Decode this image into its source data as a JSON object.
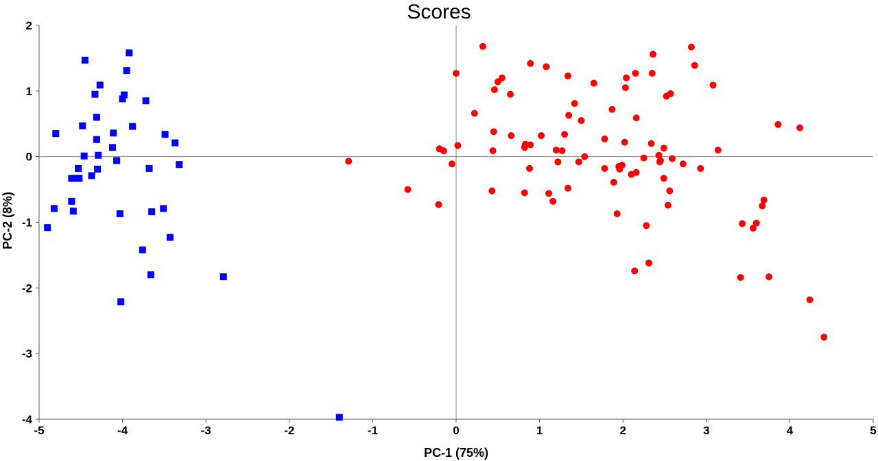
{
  "chart_data": {
    "type": "scatter",
    "title": "Scores",
    "xlabel": "PC-1 (75%)",
    "ylabel": "PC-2 (8%)",
    "xlim": [
      -5,
      5
    ],
    "ylim": [
      -4,
      2
    ],
    "xticks": [
      "-5",
      "-4",
      "-3",
      "-2",
      "-1",
      "0",
      "1",
      "2",
      "3",
      "4",
      "5"
    ],
    "yticks": [
      "2",
      "1",
      "0",
      "-1",
      "-2",
      "-3",
      "-4"
    ],
    "grid": false,
    "zero_lines": true,
    "legend": "none",
    "series": [
      {
        "marker": "square",
        "color": "#0000ff",
        "points": [
          [
            -4.45,
            1.47
          ],
          [
            -3.92,
            1.58
          ],
          [
            -3.95,
            1.31
          ],
          [
            -4.27,
            1.09
          ],
          [
            -4.33,
            0.95
          ],
          [
            -3.98,
            0.94
          ],
          [
            -4.0,
            0.88
          ],
          [
            -3.72,
            0.85
          ],
          [
            -4.31,
            0.6
          ],
          [
            -4.48,
            0.47
          ],
          [
            -3.88,
            0.46
          ],
          [
            -4.8,
            0.35
          ],
          [
            -4.11,
            0.36
          ],
          [
            -3.49,
            0.34
          ],
          [
            -4.31,
            0.26
          ],
          [
            -3.37,
            0.21
          ],
          [
            -4.12,
            0.14
          ],
          [
            -4.46,
            0.01
          ],
          [
            -4.29,
            0.02
          ],
          [
            -4.07,
            -0.06
          ],
          [
            -3.32,
            -0.12
          ],
          [
            -4.53,
            -0.18
          ],
          [
            -4.3,
            -0.19
          ],
          [
            -3.68,
            -0.18
          ],
          [
            -4.37,
            -0.29
          ],
          [
            -4.61,
            -0.33
          ],
          [
            -4.55,
            -0.33
          ],
          [
            -4.52,
            -0.33
          ],
          [
            -4.61,
            -0.68
          ],
          [
            -4.82,
            -0.79
          ],
          [
            -3.51,
            -0.79
          ],
          [
            -4.59,
            -0.83
          ],
          [
            -3.65,
            -0.84
          ],
          [
            -4.03,
            -0.87
          ],
          [
            -4.9,
            -1.08
          ],
          [
            -3.43,
            -1.23
          ],
          [
            -3.76,
            -1.42
          ],
          [
            -3.66,
            -1.8
          ],
          [
            -2.79,
            -1.83
          ],
          [
            -4.02,
            -2.21
          ],
          [
            -1.4,
            -3.97
          ]
        ]
      },
      {
        "marker": "circle",
        "color": "#ff0000",
        "points": [
          [
            0.32,
            1.68
          ],
          [
            2.82,
            1.67
          ],
          [
            2.36,
            1.56
          ],
          [
            0.89,
            1.42
          ],
          [
            2.86,
            1.39
          ],
          [
            1.08,
            1.37
          ],
          [
            0.0,
            1.27
          ],
          [
            2.15,
            1.27
          ],
          [
            2.35,
            1.27
          ],
          [
            1.34,
            1.23
          ],
          [
            0.55,
            1.2
          ],
          [
            2.04,
            1.2
          ],
          [
            0.5,
            1.14
          ],
          [
            1.65,
            1.12
          ],
          [
            3.08,
            1.09
          ],
          [
            2.03,
            1.05
          ],
          [
            0.46,
            1.02
          ],
          [
            2.57,
            0.96
          ],
          [
            0.65,
            0.95
          ],
          [
            2.52,
            0.92
          ],
          [
            1.42,
            0.81
          ],
          [
            1.87,
            0.72
          ],
          [
            0.22,
            0.66
          ],
          [
            1.35,
            0.63
          ],
          [
            2.16,
            0.59
          ],
          [
            1.5,
            0.55
          ],
          [
            3.86,
            0.49
          ],
          [
            4.12,
            0.44
          ],
          [
            0.45,
            0.38
          ],
          [
            1.3,
            0.34
          ],
          [
            0.66,
            0.32
          ],
          [
            1.02,
            0.32
          ],
          [
            1.78,
            0.27
          ],
          [
            2.02,
            0.22
          ],
          [
            2.34,
            0.2
          ],
          [
            0.83,
            0.19
          ],
          [
            0.89,
            0.18
          ],
          [
            0.02,
            0.17
          ],
          [
            0.82,
            0.14
          ],
          [
            2.49,
            0.13
          ],
          [
            -0.2,
            0.12
          ],
          [
            1.2,
            0.1
          ],
          [
            3.14,
            0.1
          ],
          [
            -0.15,
            0.09
          ],
          [
            0.44,
            0.09
          ],
          [
            1.27,
            0.09
          ],
          [
            2.43,
            0.02
          ],
          [
            1.54,
            0.0
          ],
          [
            2.25,
            -0.02
          ],
          [
            2.59,
            -0.03
          ],
          [
            2.45,
            -0.06
          ],
          [
            1.22,
            -0.08
          ],
          [
            2.44,
            -0.08
          ],
          [
            1.47,
            -0.08
          ],
          [
            -1.29,
            -0.07
          ],
          [
            -0.05,
            -0.11
          ],
          [
            2.72,
            -0.11
          ],
          [
            1.99,
            -0.13
          ],
          [
            1.95,
            -0.15
          ],
          [
            1.78,
            -0.18
          ],
          [
            0.88,
            -0.18
          ],
          [
            2.93,
            -0.18
          ],
          [
            1.96,
            -0.19
          ],
          [
            2.16,
            -0.24
          ],
          [
            2.1,
            -0.27
          ],
          [
            2.49,
            -0.33
          ],
          [
            1.89,
            -0.39
          ],
          [
            1.34,
            -0.48
          ],
          [
            -0.58,
            -0.5
          ],
          [
            0.43,
            -0.52
          ],
          [
            2.56,
            -0.52
          ],
          [
            0.82,
            -0.55
          ],
          [
            1.11,
            -0.56
          ],
          [
            3.69,
            -0.66
          ],
          [
            1.16,
            -0.68
          ],
          [
            -0.21,
            -0.73
          ],
          [
            2.54,
            -0.74
          ],
          [
            3.67,
            -0.75
          ],
          [
            1.93,
            -0.87
          ],
          [
            3.43,
            -1.02
          ],
          [
            3.6,
            -1.01
          ],
          [
            2.28,
            -1.05
          ],
          [
            3.56,
            -1.09
          ],
          [
            2.31,
            -1.62
          ],
          [
            2.14,
            -1.74
          ],
          [
            3.41,
            -1.84
          ],
          [
            3.75,
            -1.83
          ],
          [
            4.24,
            -2.18
          ],
          [
            4.41,
            -2.75
          ]
        ]
      }
    ]
  }
}
